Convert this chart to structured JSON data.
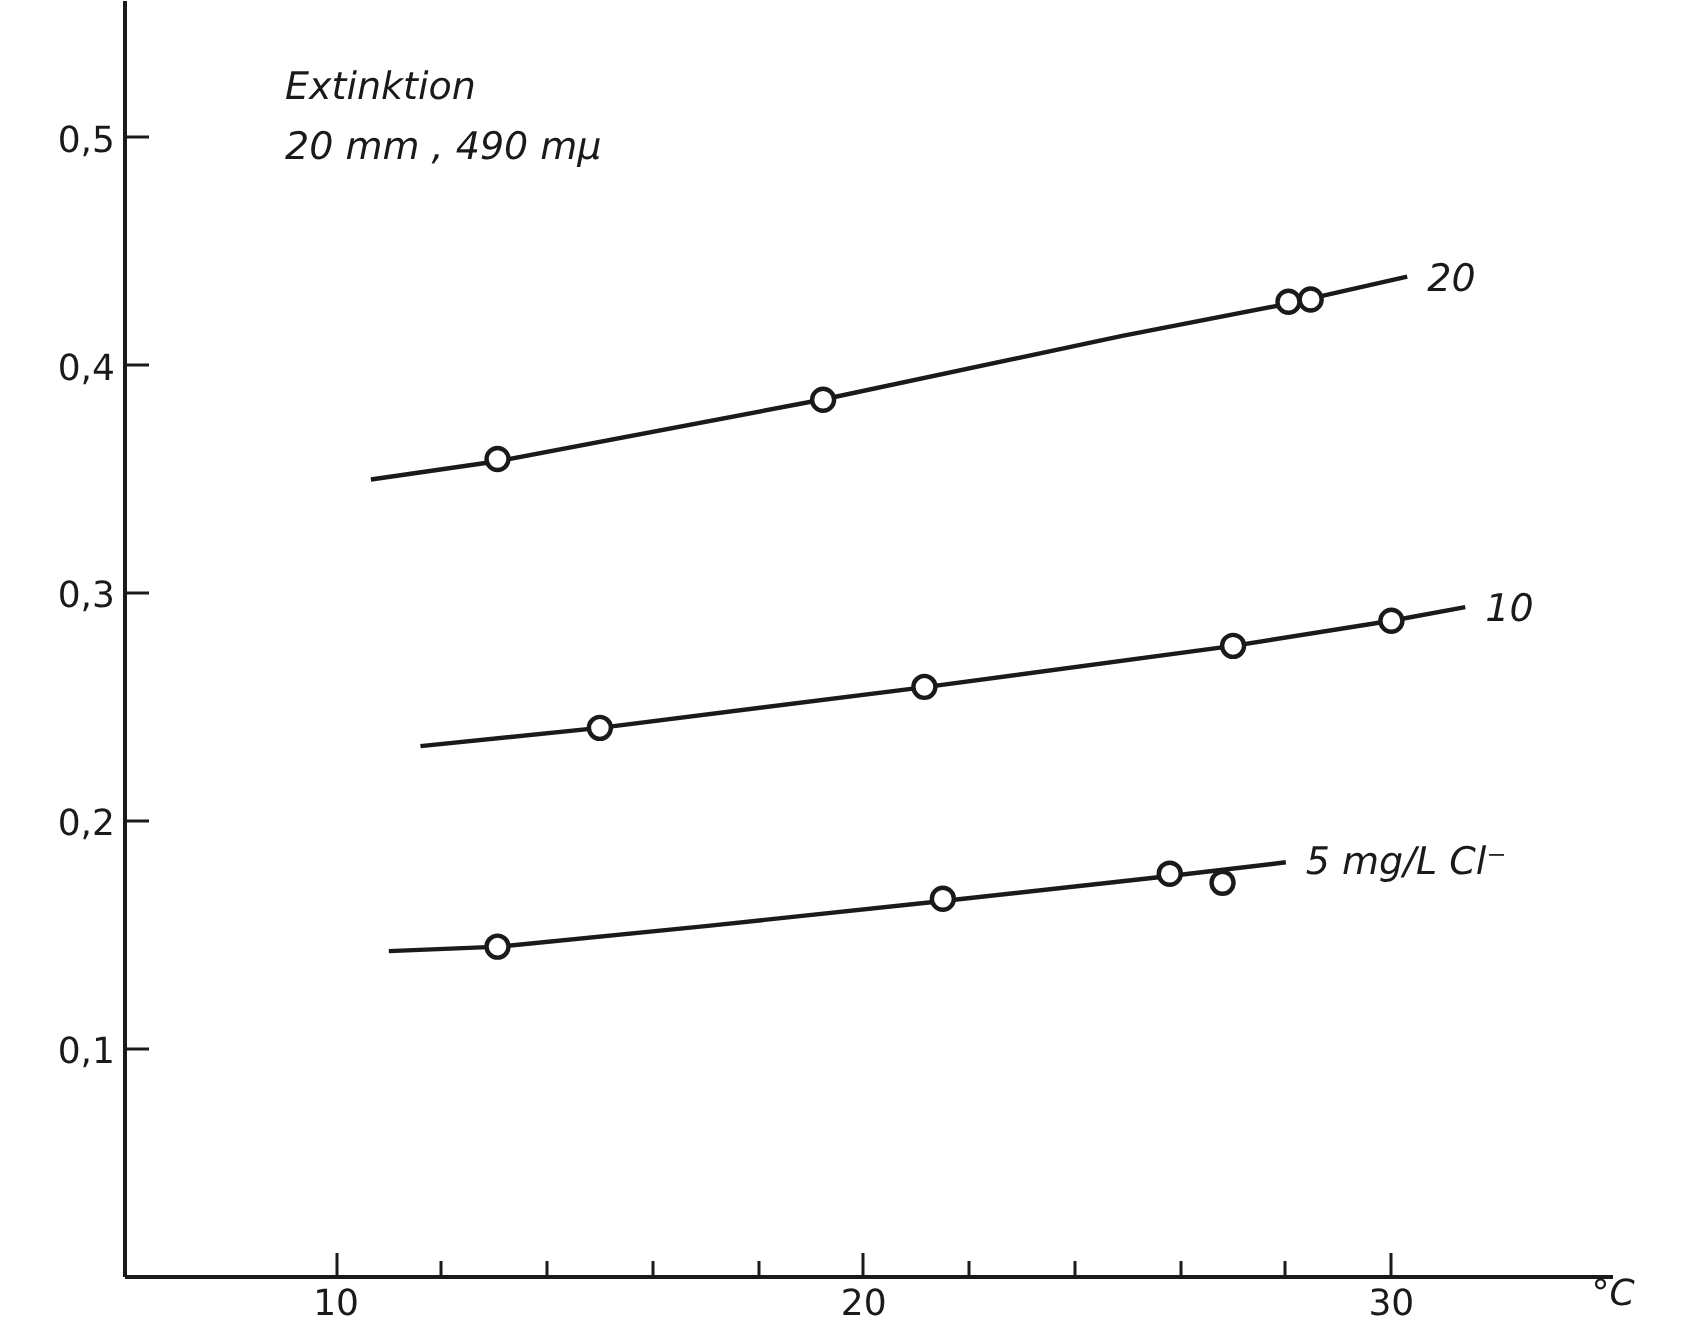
{
  "chart_data": {
    "type": "line",
    "xlabel": "°C",
    "xlim": [
      6.0,
      34.2
    ],
    "ylim": [
      0,
      0.56
    ],
    "xticks": [
      10,
      {
        "value": 12,
        "label": null
      },
      {
        "value": 14,
        "label": null
      },
      {
        "value": 16,
        "label": null
      },
      {
        "value": 18,
        "label": null
      },
      20,
      {
        "value": 22,
        "label": null
      },
      {
        "value": 24,
        "label": null
      },
      {
        "value": 26,
        "label": null
      },
      {
        "value": 28,
        "label": null
      },
      30
    ],
    "yticks": [
      {
        "value": 0.1,
        "label": "0,1"
      },
      {
        "value": 0.2,
        "label": "0,2"
      },
      {
        "value": 0.3,
        "label": "0,3"
      },
      {
        "value": 0.4,
        "label": "0,4"
      },
      {
        "value": 0.5,
        "label": "0,5"
      }
    ],
    "grid": false,
    "annotations": [
      "Extinktion",
      "20 mm , 490 mμ"
    ],
    "series": [
      {
        "name": "20",
        "line_style": "solid",
        "color": "#1a1a1a",
        "x": [
          10.66,
          13.06,
          19.2,
          24.9,
          28.0,
          30.3
        ],
        "values": [
          0.35,
          0.358,
          0.385,
          0.413,
          0.427,
          0.439
        ]
      },
      {
        "name": "10",
        "line_style": "solid",
        "color": "#1a1a1a",
        "x": [
          11.6,
          15.0,
          21.2,
          27.0,
          30.0,
          31.4
        ],
        "values": [
          0.233,
          0.241,
          0.259,
          0.277,
          0.288,
          0.294
        ]
      },
      {
        "name": "5 mg/L Cl⁻",
        "line_style": "solid",
        "color": "#1a1a1a",
        "x": [
          11.0,
          13.1,
          17.0,
          21.5,
          25.8,
          28.0
        ],
        "values": [
          0.143,
          0.145,
          0.154,
          0.165,
          0.176,
          0.182
        ]
      },
      {
        "type": "scatter",
        "marker": "circle",
        "color": "#1a1a1a",
        "x": [
          13.06,
          19.23,
          28.05,
          28.47
        ],
        "values": [
          0.359,
          0.385,
          0.428,
          0.429
        ]
      },
      {
        "type": "scatter",
        "marker": "circle",
        "color": "#1a1a1a",
        "x": [
          15.0,
          21.15,
          27.0,
          30.0
        ],
        "values": [
          0.241,
          0.259,
          0.277,
          0.288
        ]
      },
      {
        "type": "scatter",
        "marker": "circle",
        "color": "#1a1a1a",
        "x": [
          13.06,
          21.5,
          25.8,
          26.8
        ],
        "values": [
          0.145,
          0.166,
          0.177,
          0.173
        ]
      }
    ]
  }
}
